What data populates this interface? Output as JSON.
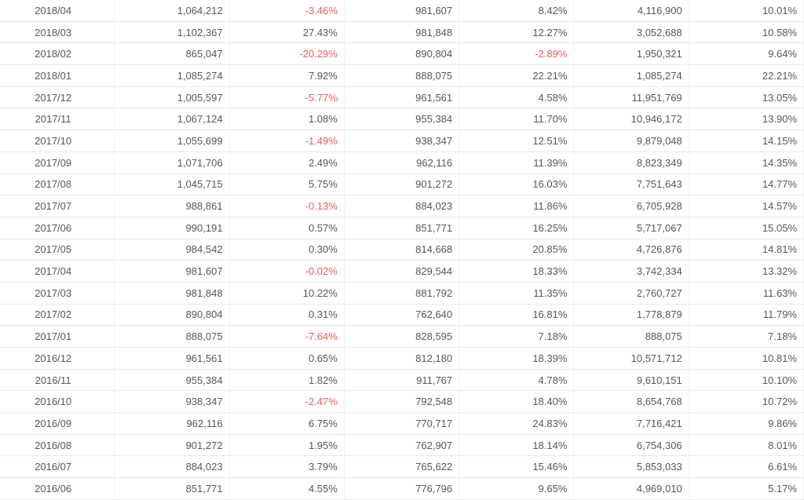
{
  "colors": {
    "text": "#575757",
    "negative": "#f4595b",
    "row_border": "#e8e8e8",
    "col_border": "#f3f3f3",
    "bg": "#ffffff"
  },
  "table": {
    "rows": [
      [
        "2018/04",
        "1,064,212",
        "-3.46%",
        "981,607",
        "8.42%",
        "4,116,900",
        "10.01%"
      ],
      [
        "2018/03",
        "1,102,367",
        "27.43%",
        "981,848",
        "12.27%",
        "3,052,688",
        "10.58%"
      ],
      [
        "2018/02",
        "865,047",
        "-20.29%",
        "890,804",
        "-2.89%",
        "1,950,321",
        "9.64%"
      ],
      [
        "2018/01",
        "1,085,274",
        "7.92%",
        "888,075",
        "22.21%",
        "1,085,274",
        "22.21%"
      ],
      [
        "2017/12",
        "1,005,597",
        "-5.77%",
        "961,561",
        "4.58%",
        "11,951,769",
        "13.05%"
      ],
      [
        "2017/11",
        "1,067,124",
        "1.08%",
        "955,384",
        "11.70%",
        "10,946,172",
        "13.90%"
      ],
      [
        "2017/10",
        "1,055,699",
        "-1.49%",
        "938,347",
        "12.51%",
        "9,879,048",
        "14.15%"
      ],
      [
        "2017/09",
        "1,071,706",
        "2.49%",
        "962,116",
        "11.39%",
        "8,823,349",
        "14.35%"
      ],
      [
        "2017/08",
        "1,045,715",
        "5.75%",
        "901,272",
        "16.03%",
        "7,751,643",
        "14.77%"
      ],
      [
        "2017/07",
        "988,861",
        "-0.13%",
        "884,023",
        "11.86%",
        "6,705,928",
        "14.57%"
      ],
      [
        "2017/06",
        "990,191",
        "0.57%",
        "851,771",
        "16.25%",
        "5,717,067",
        "15.05%"
      ],
      [
        "2017/05",
        "984,542",
        "0.30%",
        "814,668",
        "20.85%",
        "4,726,876",
        "14.81%"
      ],
      [
        "2017/04",
        "981,607",
        "-0.02%",
        "829,544",
        "18.33%",
        "3,742,334",
        "13.32%"
      ],
      [
        "2017/03",
        "981,848",
        "10.22%",
        "881,792",
        "11.35%",
        "2,760,727",
        "11.63%"
      ],
      [
        "2017/02",
        "890,804",
        "0.31%",
        "762,640",
        "16.81%",
        "1,778,879",
        "11.79%"
      ],
      [
        "2017/01",
        "888,075",
        "-7.64%",
        "828,595",
        "7.18%",
        "888,075",
        "7.18%"
      ],
      [
        "2016/12",
        "961,561",
        "0.65%",
        "812,180",
        "18.39%",
        "10,571,712",
        "10.81%"
      ],
      [
        "2016/11",
        "955,384",
        "1.82%",
        "911,767",
        "4.78%",
        "9,610,151",
        "10.10%"
      ],
      [
        "2016/10",
        "938,347",
        "-2.47%",
        "792,548",
        "18.40%",
        "8,654,768",
        "10.72%"
      ],
      [
        "2016/09",
        "962,116",
        "6.75%",
        "770,717",
        "24.83%",
        "7,716,421",
        "9.86%"
      ],
      [
        "2016/08",
        "901,272",
        "1.95%",
        "762,907",
        "18.14%",
        "6,754,306",
        "8.01%"
      ],
      [
        "2016/07",
        "884,023",
        "3.79%",
        "765,622",
        "15.46%",
        "5,853,033",
        "6.61%"
      ],
      [
        "2016/06",
        "851,771",
        "4.55%",
        "776,796",
        "9.65%",
        "4,969,010",
        "5.17%"
      ]
    ]
  }
}
